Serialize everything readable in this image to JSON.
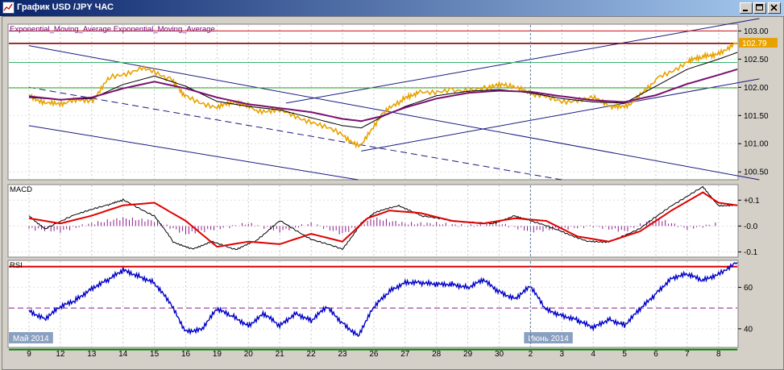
{
  "window": {
    "title": "График USD /JPY  ЧАС",
    "icon": "chart-window-icon",
    "buttons": [
      "minimize-icon",
      "maximize-icon",
      "close-icon"
    ]
  },
  "chart_data": [
    {
      "type": "line",
      "name": "price",
      "indicator_label": "Exponential_Moving_Average Exponential_Moving_Average",
      "y_ticks": [
        "103.00",
        "102.50",
        "102.00",
        "101.50",
        "101.00",
        "100.50"
      ],
      "ylim": [
        100.36,
        103.12
      ],
      "current_price": "102.79",
      "series": [
        {
          "type": "bar",
          "color": "#e8a200",
          "x": [
            0,
            0.6,
            1.2,
            2,
            2.6,
            3.6,
            4.5,
            5,
            6,
            6.6,
            7.2,
            8,
            9,
            10,
            10.6,
            11.2,
            11.9,
            12.4,
            13.5,
            14.7,
            15.3,
            16,
            17,
            18,
            18.7,
            19.3,
            20,
            21,
            21.5,
            22,
            22.6
          ],
          "y": [
            101.87,
            101.7,
            101.74,
            101.77,
            102.18,
            102.34,
            102.14,
            101.85,
            101.63,
            101.75,
            101.6,
            101.58,
            101.4,
            101.15,
            100.95,
            101.5,
            101.76,
            101.92,
            101.95,
            101.99,
            102.06,
            101.87,
            101.76,
            101.8,
            101.65,
            101.73,
            102.15,
            102.45,
            102.53,
            102.62,
            102.79
          ]
        },
        {
          "type": "ema_fast",
          "color": "#000000",
          "x": [
            0,
            1,
            2,
            3,
            4,
            5,
            6,
            7,
            8,
            9,
            10,
            10.6,
            11.2,
            12,
            13,
            14,
            15,
            16,
            17,
            18,
            19,
            20,
            21,
            22,
            22.6
          ],
          "y": [
            101.82,
            101.78,
            101.8,
            102.05,
            102.2,
            102.02,
            101.75,
            101.66,
            101.6,
            101.46,
            101.32,
            101.28,
            101.46,
            101.66,
            101.85,
            101.93,
            101.96,
            101.9,
            101.8,
            101.74,
            101.72,
            102.02,
            102.32,
            102.5,
            102.62
          ]
        },
        {
          "type": "ema_slow",
          "color": "#7a1070",
          "x": [
            0,
            1,
            2,
            3,
            4,
            5,
            6,
            7,
            8,
            9,
            10,
            10.6,
            11.2,
            12,
            13,
            14,
            15,
            16,
            17,
            18,
            19,
            20,
            21,
            22,
            22.6
          ],
          "y": [
            101.84,
            101.78,
            101.82,
            101.98,
            102.1,
            101.98,
            101.82,
            101.7,
            101.63,
            101.56,
            101.44,
            101.4,
            101.48,
            101.64,
            101.8,
            101.9,
            101.94,
            101.92,
            101.84,
            101.77,
            101.74,
            101.86,
            102.06,
            102.22,
            102.32
          ]
        }
      ],
      "horizontal_lines": [
        {
          "y": 103.0,
          "color": "#d01010"
        },
        {
          "y": 102.78,
          "color": "#8b0000"
        },
        {
          "y": 102.44,
          "color": "#3cb371"
        },
        {
          "y": 101.99,
          "color": "#20a020"
        }
      ],
      "trend_lines": [
        {
          "x": [
            0,
            23.3
          ],
          "y": [
            102.74,
            100.36
          ],
          "color": "#1a1a80",
          "style": "solid"
        },
        {
          "x": [
            0,
            10.5
          ],
          "y": [
            101.32,
            100.36
          ],
          "color": "#1a1a80",
          "style": "solid"
        },
        {
          "x": [
            0,
            17.0
          ],
          "y": [
            102.0,
            100.36
          ],
          "color": "#1a1a80",
          "style": "dashed"
        },
        {
          "x": [
            8.2,
            23.3
          ],
          "y": [
            101.72,
            103.22
          ],
          "color": "#1a1a80",
          "style": "solid"
        },
        {
          "x": [
            10.6,
            23.3
          ],
          "y": [
            100.87,
            102.15
          ],
          "color": "#1a1a80",
          "style": "solid"
        }
      ]
    },
    {
      "type": "line",
      "name": "macd",
      "label": "MACD",
      "y_ticks": [
        "+0.1",
        "-0.0",
        "-0.1"
      ],
      "ylim": [
        -0.12,
        0.16
      ],
      "series": [
        {
          "type": "histogram",
          "color": "#8b1a8b",
          "x": [
            0,
            1,
            2,
            3,
            4,
            5,
            6,
            7,
            8,
            9,
            10,
            11,
            12,
            13,
            14,
            15,
            16,
            17,
            18,
            19,
            20,
            21,
            22
          ],
          "y": [
            -0.01,
            -0.02,
            0.01,
            0.03,
            0.02,
            -0.03,
            -0.01,
            0.01,
            -0.02,
            0.01,
            -0.03,
            0.03,
            0.01,
            0.01,
            0.0,
            0.01,
            -0.02,
            -0.01,
            0.0,
            -0.02,
            0.03,
            -0.01,
            0.01
          ]
        },
        {
          "type": "macd",
          "color": "#000000",
          "x": [
            0,
            0.5,
            1.6,
            2.5,
            3,
            4,
            4.6,
            5.2,
            5.8,
            6.6,
            7.2,
            8,
            9,
            10,
            10.6,
            11,
            11.8,
            12.5,
            13.5,
            14.8,
            15.5,
            16,
            17,
            17.8,
            18.5,
            19.5,
            20.5,
            21.5,
            22,
            22.6
          ],
          "y": [
            0.04,
            -0.01,
            0.05,
            0.08,
            0.1,
            0.04,
            -0.06,
            -0.09,
            -0.06,
            -0.09,
            -0.06,
            0.02,
            -0.05,
            -0.09,
            0.01,
            0.05,
            0.08,
            0.04,
            0.02,
            0.01,
            0.04,
            0.02,
            -0.02,
            -0.06,
            -0.06,
            -0.01,
            0.08,
            0.15,
            0.08,
            0.08
          ]
        },
        {
          "type": "signal",
          "color": "#e00000",
          "x": [
            0,
            1,
            2,
            3,
            4,
            5,
            6,
            7,
            8,
            9,
            10,
            10.8,
            11.5,
            12.5,
            13.5,
            14.5,
            15.5,
            16.5,
            17.5,
            18.5,
            19.5,
            20.5,
            21.5,
            22,
            22.6
          ],
          "y": [
            0.03,
            0.01,
            0.04,
            0.08,
            0.09,
            0.02,
            -0.08,
            -0.06,
            -0.07,
            -0.03,
            -0.06,
            0.03,
            0.06,
            0.05,
            0.02,
            0.01,
            0.03,
            0.02,
            -0.04,
            -0.06,
            -0.02,
            0.06,
            0.13,
            0.09,
            0.08
          ]
        }
      ]
    },
    {
      "type": "line",
      "name": "rsi",
      "label": "RSI",
      "y_ticks": [
        "60",
        "40"
      ],
      "ylim": [
        31,
        73
      ],
      "series": [
        {
          "type": "rsi",
          "color": "#0000c8",
          "x": [
            0,
            0.5,
            1,
            1.5,
            2,
            2.5,
            3,
            3.5,
            4,
            4.5,
            5,
            5.5,
            6,
            6.5,
            7,
            7.5,
            8,
            8.5,
            9,
            9.5,
            10,
            10.5,
            11,
            11.5,
            12,
            12.5,
            13,
            13.5,
            14,
            14.5,
            15,
            15.5,
            16,
            16.5,
            17,
            17.5,
            18,
            18.5,
            19,
            19.5,
            20,
            20.5,
            21,
            21.5,
            22,
            22.6
          ],
          "y": [
            49,
            45,
            50,
            54,
            60,
            63,
            68,
            66,
            62,
            52,
            39,
            40,
            49,
            46,
            42,
            47,
            41,
            48,
            44,
            50,
            43,
            37,
            50,
            58,
            63,
            62,
            61,
            62,
            60,
            63,
            58,
            55,
            60,
            49,
            47,
            44,
            40,
            45,
            42,
            49,
            57,
            65,
            66,
            63,
            67,
            72
          ]
        }
      ],
      "levels": [
        {
          "y": 70,
          "color": "#e00000"
        },
        {
          "y": 50,
          "color": "#8b1a8b",
          "style": "dashed"
        },
        {
          "y": 30,
          "color": "#008000"
        }
      ]
    }
  ],
  "x_axis": {
    "ticks": [
      "9",
      "12",
      "13",
      "14",
      "15",
      "16",
      "19",
      "20",
      "21",
      "22",
      "23",
      "26",
      "27",
      "28",
      "29",
      "30",
      "2",
      "3",
      "4",
      "5",
      "6",
      "7",
      "8",
      "9"
    ],
    "month_labels": [
      {
        "text": "Май 2014",
        "at": 0
      },
      {
        "text": "Июнь 2014",
        "at": 16
      }
    ]
  },
  "colors": {
    "title_gradient_start": "#0a246a",
    "title_gradient_end": "#a6caf0",
    "panel_bg": "#ffffff",
    "price_label_bg": "#e8a200"
  }
}
